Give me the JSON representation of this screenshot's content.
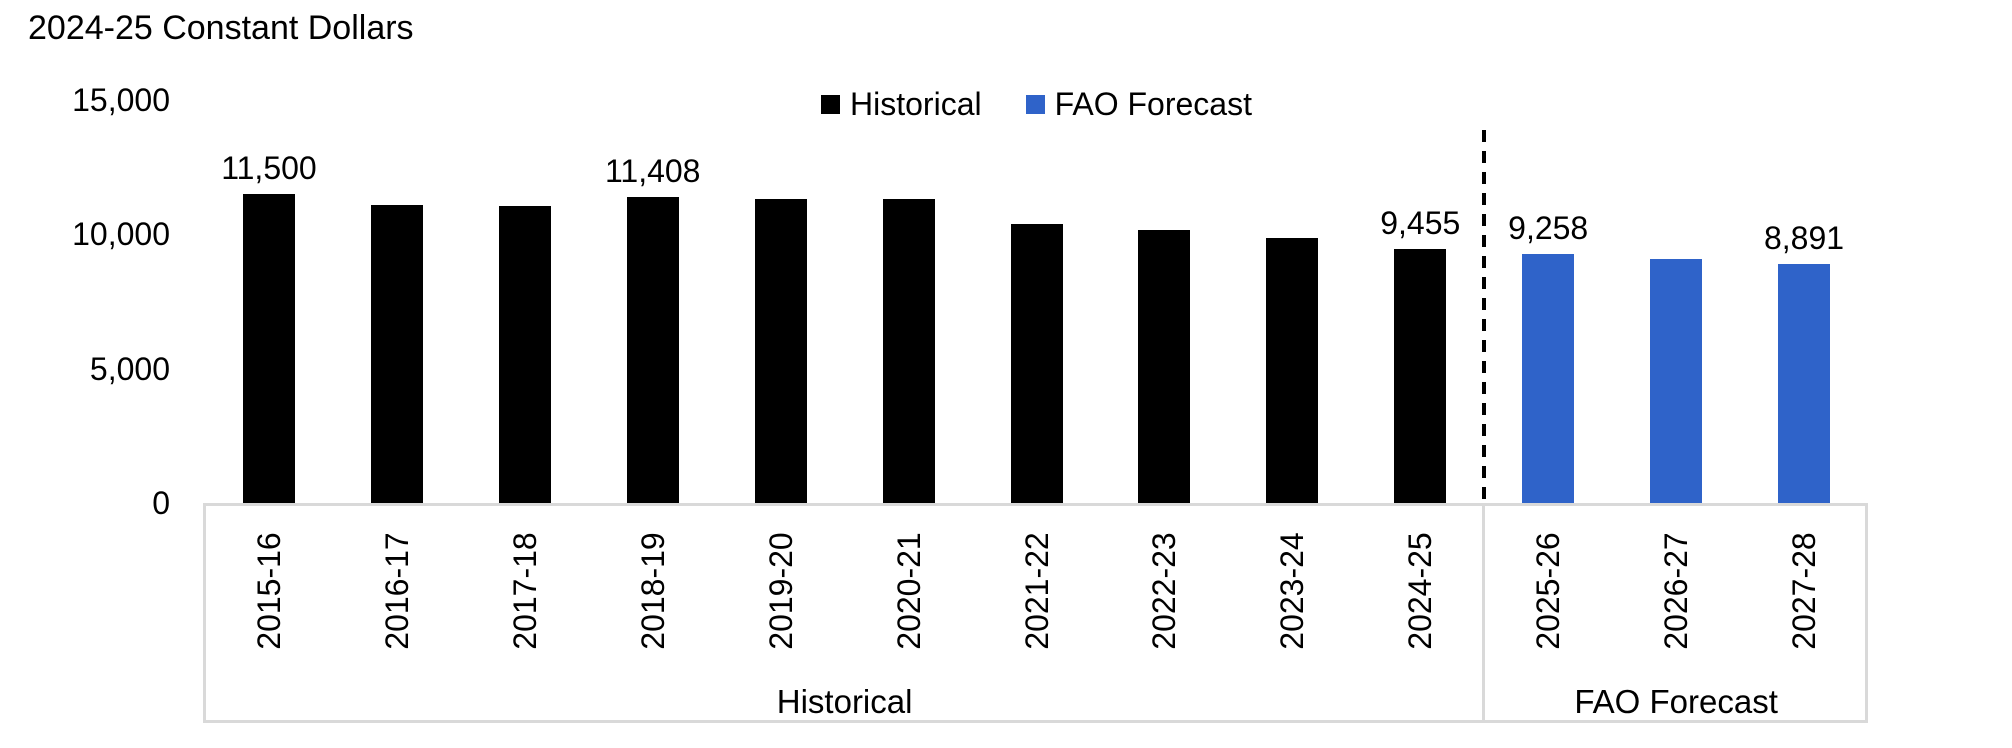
{
  "title": "2024-25 Constant Dollars",
  "legend": {
    "items": [
      {
        "label": "Historical",
        "color": "#000000"
      },
      {
        "label": "FAO Forecast",
        "color": "#2F63C9"
      }
    ]
  },
  "chart_data": {
    "type": "bar",
    "title": "2024-25 Constant Dollars",
    "categories": [
      "2015-16",
      "2016-17",
      "2017-18",
      "2018-19",
      "2019-20",
      "2020-21",
      "2021-22",
      "2022-23",
      "2023-24",
      "2024-25",
      "2025-26",
      "2026-27",
      "2027-28"
    ],
    "series": [
      {
        "name": "Historical",
        "color": "#000000",
        "values": [
          11500,
          11100,
          11050,
          11408,
          11300,
          11320,
          10400,
          10150,
          9850,
          9455,
          null,
          null,
          null
        ]
      },
      {
        "name": "FAO Forecast",
        "color": "#2F63C9",
        "values": [
          null,
          null,
          null,
          null,
          null,
          null,
          null,
          null,
          null,
          null,
          9258,
          9075,
          8891
        ]
      }
    ],
    "data_labels": {
      "0": "11,500",
      "3": "11,408",
      "9": "9,455",
      "10": "9,258",
      "12": "8,891"
    },
    "yticks": [
      {
        "value": 0,
        "label": "0"
      },
      {
        "value": 5000,
        "label": "5,000"
      },
      {
        "value": 10000,
        "label": "10,000"
      },
      {
        "value": 15000,
        "label": "15,000"
      }
    ],
    "ylim": [
      0,
      15000
    ],
    "grid": false,
    "legend_position": "top-center",
    "x_groups": [
      {
        "label": "Historical",
        "start": 0,
        "end": 9
      },
      {
        "label": "FAO Forecast",
        "start": 10,
        "end": 12
      }
    ],
    "separator": {
      "style": "dashed",
      "color": "#000000",
      "between_index": 10
    }
  }
}
